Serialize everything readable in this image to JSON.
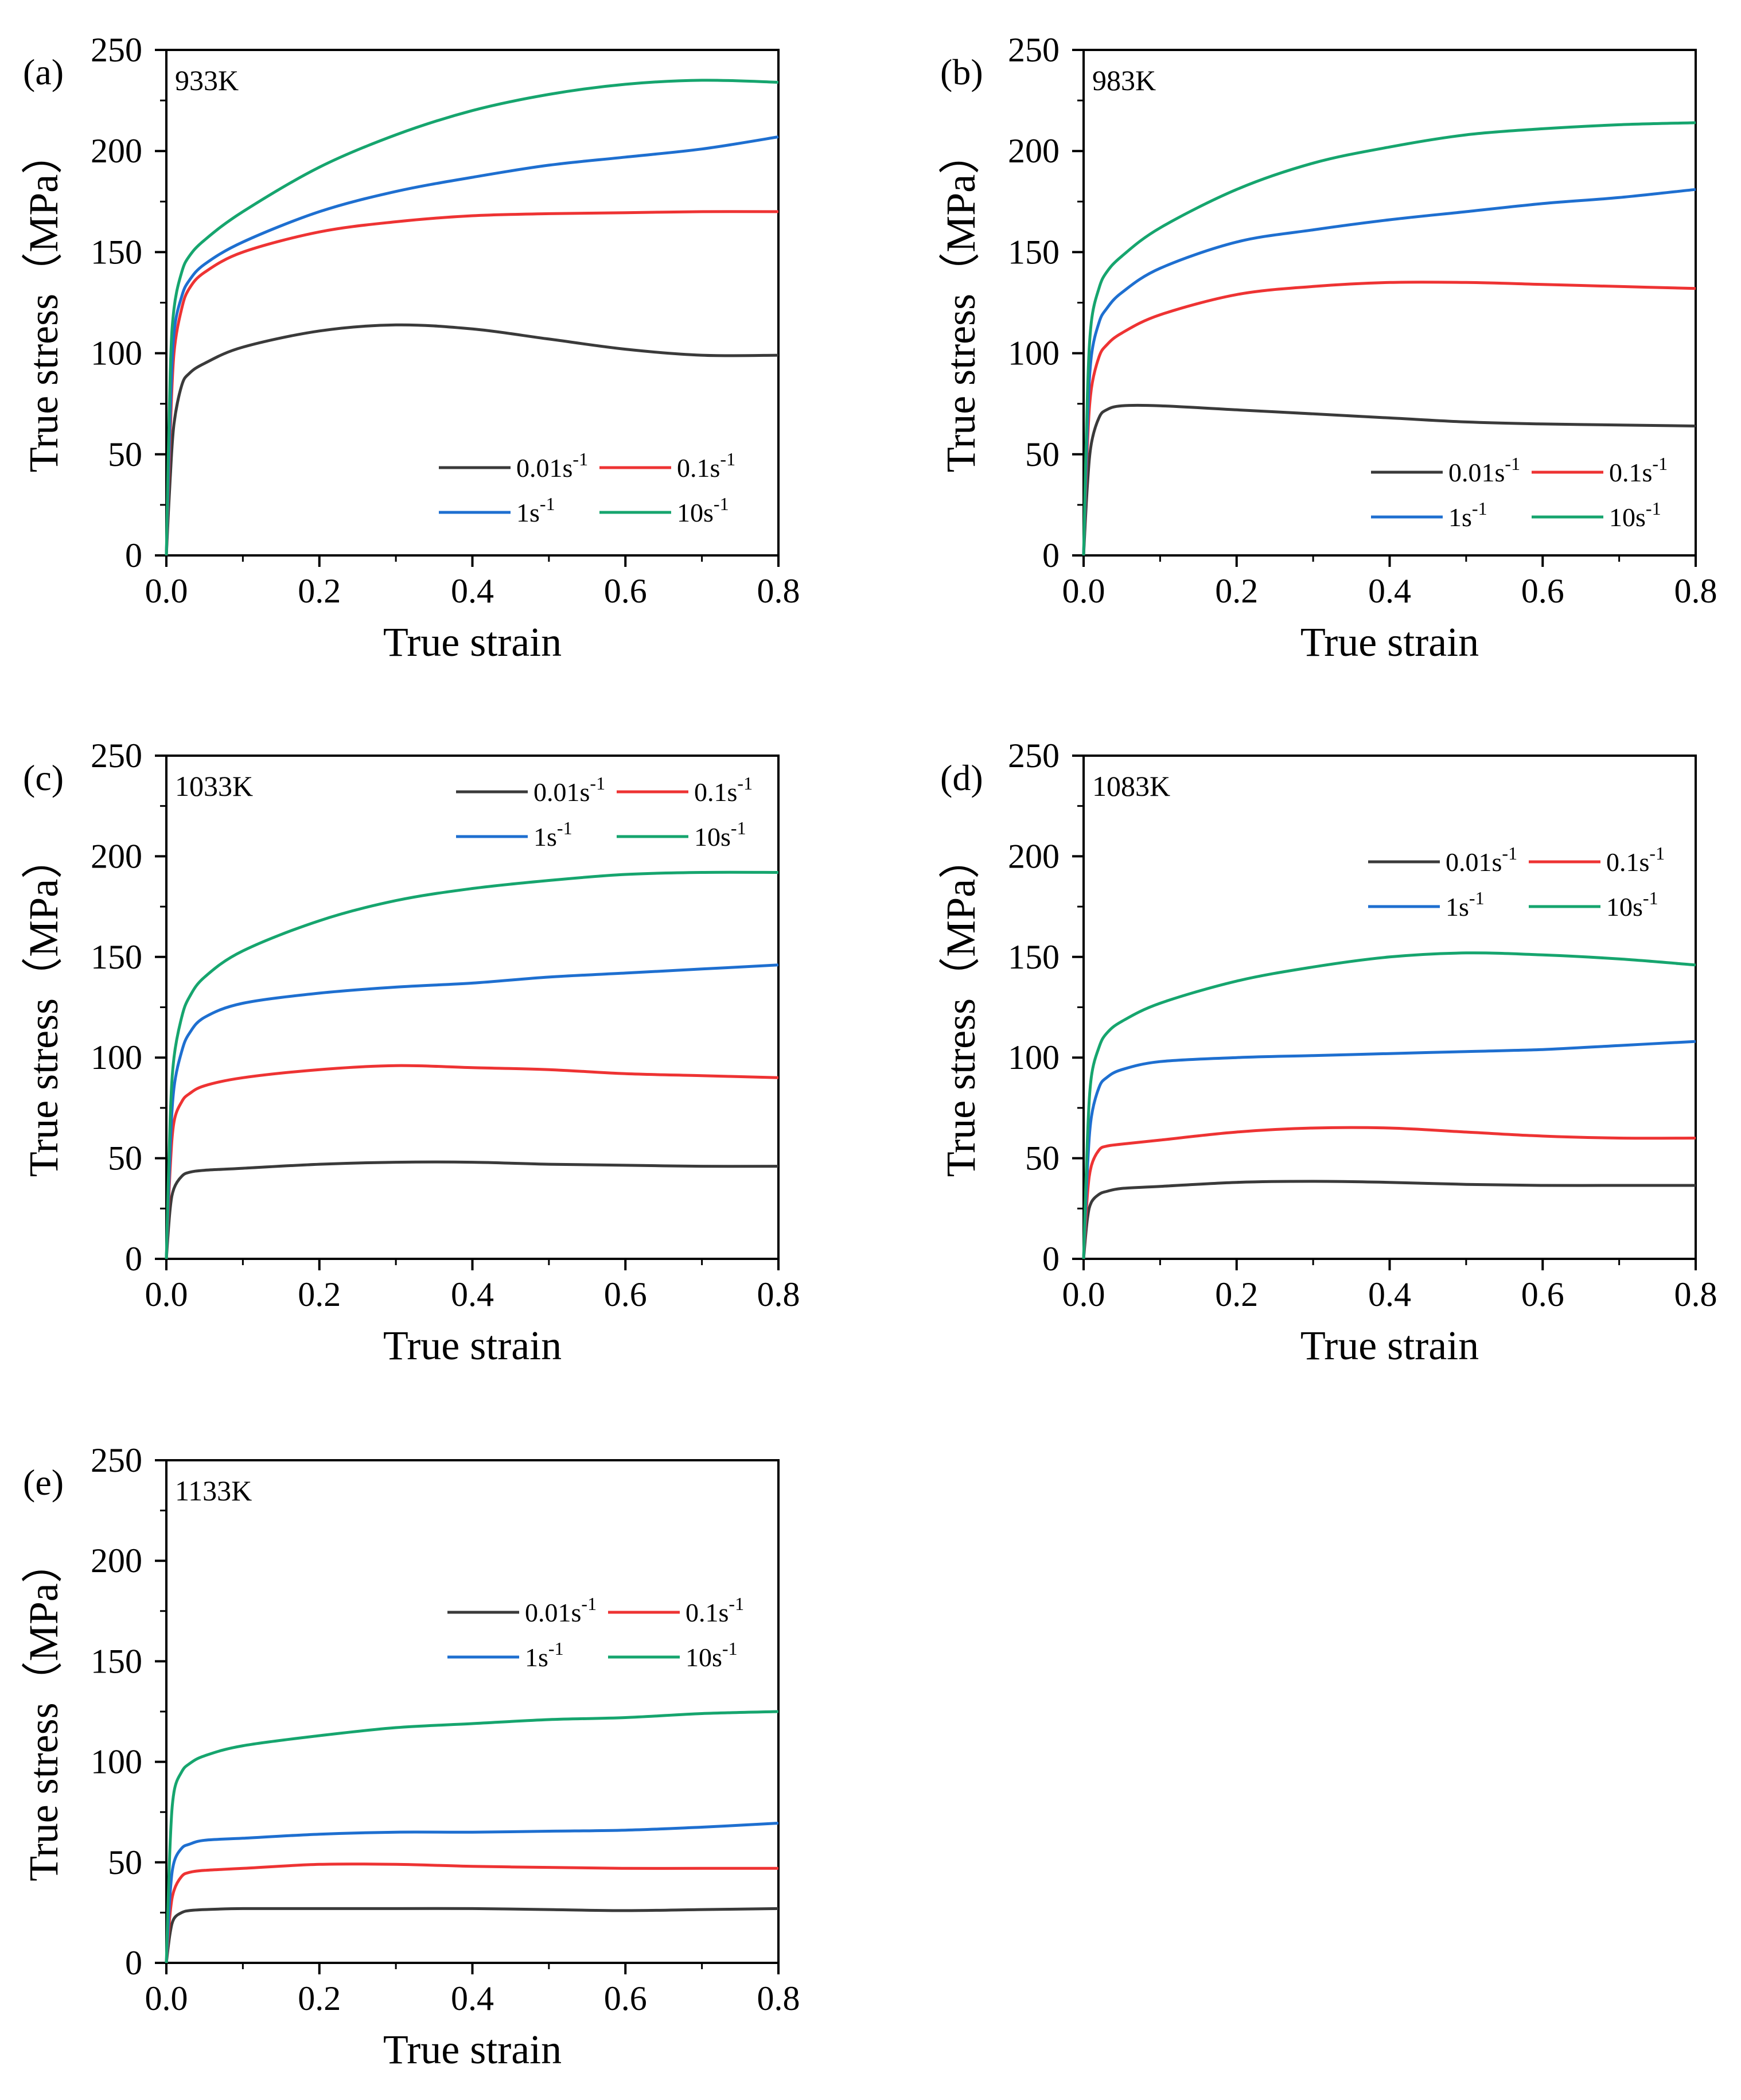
{
  "figure": {
    "x_axis_title": "True strain",
    "y_axis_title": "True stress（MPa）",
    "colors": {
      "0.01s-1": "#3a3a3a",
      "0.1s-1": "#ee3333",
      "1s-1": "#1e6fd0",
      "10s-1": "#16a56e"
    }
  },
  "chart_data": [
    {
      "type": "line",
      "panel_label": "(a)",
      "temperature": "933K",
      "xlabel": "True strain",
      "ylabel": "True stress（MPa）",
      "xlim": [
        0,
        0.8
      ],
      "ylim": [
        0,
        250
      ],
      "xticks": [
        "0.0",
        "0.2",
        "0.4",
        "0.6",
        "0.8"
      ],
      "yticks": [
        "0",
        "50",
        "100",
        "150",
        "200",
        "250"
      ],
      "legend_position": "bottom-right",
      "series": [
        {
          "name": "0.01s-1",
          "rate": "0.01",
          "color": "#3a3a3a",
          "x": [
            0,
            0.005,
            0.01,
            0.02,
            0.03,
            0.05,
            0.1,
            0.2,
            0.3,
            0.4,
            0.5,
            0.6,
            0.7,
            0.8
          ],
          "y": [
            0,
            38,
            65,
            84,
            90,
            95,
            103,
            111,
            114,
            112,
            107,
            102,
            99,
            99
          ]
        },
        {
          "name": "0.1s-1",
          "rate": "0.1",
          "color": "#ee3333",
          "x": [
            0,
            0.005,
            0.01,
            0.02,
            0.03,
            0.05,
            0.1,
            0.2,
            0.3,
            0.4,
            0.5,
            0.6,
            0.7,
            0.8
          ],
          "y": [
            0,
            60,
            100,
            122,
            132,
            140,
            150,
            160,
            165,
            168,
            169,
            169.5,
            170,
            170
          ]
        },
        {
          "name": "1s-1",
          "rate": "1",
          "color": "#1e6fd0",
          "x": [
            0,
            0.005,
            0.01,
            0.02,
            0.03,
            0.05,
            0.1,
            0.2,
            0.3,
            0.4,
            0.5,
            0.6,
            0.7,
            0.8
          ],
          "y": [
            0,
            70,
            110,
            128,
            136,
            144,
            155,
            170,
            180,
            187,
            193,
            197,
            201,
            207
          ]
        },
        {
          "name": "10s-1",
          "rate": "10",
          "color": "#16a56e",
          "x": [
            0,
            0.005,
            0.01,
            0.02,
            0.03,
            0.05,
            0.1,
            0.2,
            0.3,
            0.4,
            0.5,
            0.6,
            0.7,
            0.8
          ],
          "y": [
            0,
            90,
            122,
            140,
            148,
            156,
            170,
            192,
            208,
            220,
            228,
            233,
            235,
            234
          ]
        }
      ]
    },
    {
      "type": "line",
      "panel_label": "(b)",
      "temperature": "983K",
      "xlabel": "True strain",
      "ylabel": "True stress（MPa）",
      "xlim": [
        0,
        0.8
      ],
      "ylim": [
        0,
        250
      ],
      "xticks": [
        "0.0",
        "0.2",
        "0.4",
        "0.6",
        "0.8"
      ],
      "yticks": [
        "0",
        "50",
        "100",
        "150",
        "200",
        "250"
      ],
      "legend_position": "bottom-right",
      "series": [
        {
          "name": "0.01s-1",
          "rate": "0.01",
          "color": "#3a3a3a",
          "x": [
            0,
            0.005,
            0.01,
            0.02,
            0.03,
            0.05,
            0.1,
            0.2,
            0.3,
            0.4,
            0.5,
            0.6,
            0.7,
            0.8
          ],
          "y": [
            0,
            35,
            55,
            68,
            72,
            74,
            74,
            72,
            70,
            68,
            66,
            65,
            64.5,
            64
          ]
        },
        {
          "name": "0.1s-1",
          "rate": "0.1",
          "color": "#ee3333",
          "x": [
            0,
            0.005,
            0.01,
            0.02,
            0.03,
            0.05,
            0.1,
            0.2,
            0.3,
            0.4,
            0.5,
            0.6,
            0.7,
            0.8
          ],
          "y": [
            0,
            55,
            82,
            98,
            104,
            110,
            119,
            129,
            133,
            135,
            135,
            134,
            133,
            132
          ]
        },
        {
          "name": "1s-1",
          "rate": "1",
          "color": "#1e6fd0",
          "x": [
            0,
            0.005,
            0.01,
            0.02,
            0.03,
            0.05,
            0.1,
            0.2,
            0.3,
            0.4,
            0.5,
            0.6,
            0.7,
            0.8
          ],
          "y": [
            0,
            65,
            98,
            115,
            122,
            130,
            142,
            155,
            161,
            166,
            170,
            174,
            177,
            181
          ]
        },
        {
          "name": "10s-1",
          "rate": "10",
          "color": "#16a56e",
          "x": [
            0,
            0.005,
            0.01,
            0.02,
            0.03,
            0.05,
            0.1,
            0.2,
            0.3,
            0.4,
            0.5,
            0.6,
            0.7,
            0.8
          ],
          "y": [
            0,
            80,
            115,
            132,
            140,
            148,
            162,
            181,
            194,
            202,
            208,
            211,
            213,
            214
          ]
        }
      ]
    },
    {
      "type": "line",
      "panel_label": "(c)",
      "temperature": "1033K",
      "xlabel": "True strain",
      "ylabel": "True stress（MPa）",
      "xlim": [
        0,
        0.8
      ],
      "ylim": [
        0,
        250
      ],
      "xticks": [
        "0.0",
        "0.2",
        "0.4",
        "0.6",
        "0.8"
      ],
      "yticks": [
        "0",
        "50",
        "100",
        "150",
        "200",
        "250"
      ],
      "legend_position": "top-right",
      "series": [
        {
          "name": "0.01s-1",
          "rate": "0.01",
          "color": "#3a3a3a",
          "x": [
            0,
            0.005,
            0.01,
            0.02,
            0.03,
            0.05,
            0.1,
            0.2,
            0.3,
            0.4,
            0.5,
            0.6,
            0.7,
            0.8
          ],
          "y": [
            0,
            25,
            35,
            41,
            43,
            44,
            45,
            47,
            48,
            48,
            47,
            46.5,
            46,
            46
          ]
        },
        {
          "name": "0.1s-1",
          "rate": "0.1",
          "color": "#ee3333",
          "x": [
            0,
            0.005,
            0.01,
            0.02,
            0.03,
            0.05,
            0.1,
            0.2,
            0.3,
            0.4,
            0.5,
            0.6,
            0.7,
            0.8
          ],
          "y": [
            0,
            45,
            68,
            78,
            82,
            86,
            90,
            94,
            96,
            95,
            94,
            92,
            91,
            90
          ]
        },
        {
          "name": "1s-1",
          "rate": "1",
          "color": "#1e6fd0",
          "x": [
            0,
            0.005,
            0.01,
            0.02,
            0.03,
            0.05,
            0.1,
            0.2,
            0.3,
            0.4,
            0.5,
            0.6,
            0.7,
            0.8
          ],
          "y": [
            0,
            55,
            85,
            103,
            112,
            120,
            127,
            132,
            135,
            137,
            140,
            142,
            144,
            146
          ]
        },
        {
          "name": "10s-1",
          "rate": "10",
          "color": "#16a56e",
          "x": [
            0,
            0.005,
            0.01,
            0.02,
            0.03,
            0.05,
            0.1,
            0.2,
            0.3,
            0.4,
            0.5,
            0.6,
            0.7,
            0.8
          ],
          "y": [
            0,
            70,
            100,
            120,
            130,
            140,
            153,
            168,
            178,
            184,
            188,
            191,
            192,
            192
          ]
        }
      ]
    },
    {
      "type": "line",
      "panel_label": "(d)",
      "temperature": "1083K",
      "xlabel": "True strain",
      "ylabel": "True stress（MPa）",
      "xlim": [
        0,
        0.8
      ],
      "ylim": [
        0,
        250
      ],
      "xticks": [
        "0.0",
        "0.2",
        "0.4",
        "0.6",
        "0.8"
      ],
      "yticks": [
        "0",
        "50",
        "100",
        "150",
        "200",
        "250"
      ],
      "legend_position": "upper-right",
      "series": [
        {
          "name": "0.01s-1",
          "rate": "0.01",
          "color": "#3a3a3a",
          "x": [
            0,
            0.005,
            0.01,
            0.02,
            0.03,
            0.05,
            0.1,
            0.2,
            0.3,
            0.4,
            0.5,
            0.6,
            0.7,
            0.8
          ],
          "y": [
            0,
            20,
            28,
            32,
            33.5,
            35,
            36,
            38,
            38.5,
            38,
            37,
            36.5,
            36.5,
            36.5
          ]
        },
        {
          "name": "0.1s-1",
          "rate": "0.1",
          "color": "#ee3333",
          "x": [
            0,
            0.005,
            0.01,
            0.02,
            0.03,
            0.05,
            0.1,
            0.2,
            0.3,
            0.4,
            0.5,
            0.6,
            0.7,
            0.8
          ],
          "y": [
            0,
            32,
            46,
            54,
            56,
            57,
            59,
            63,
            65,
            65,
            63,
            61,
            60,
            60
          ]
        },
        {
          "name": "1s-1",
          "rate": "1",
          "color": "#1e6fd0",
          "x": [
            0,
            0.005,
            0.01,
            0.02,
            0.03,
            0.05,
            0.1,
            0.2,
            0.3,
            0.4,
            0.5,
            0.6,
            0.7,
            0.8
          ],
          "y": [
            0,
            45,
            70,
            85,
            90,
            94,
            98,
            100,
            101,
            102,
            103,
            104,
            106,
            108
          ]
        },
        {
          "name": "10s-1",
          "rate": "10",
          "color": "#16a56e",
          "x": [
            0,
            0.005,
            0.01,
            0.02,
            0.03,
            0.05,
            0.1,
            0.2,
            0.3,
            0.4,
            0.5,
            0.6,
            0.7,
            0.8
          ],
          "y": [
            0,
            60,
            90,
            105,
            112,
            118,
            127,
            138,
            145,
            150,
            152,
            151,
            149,
            146
          ]
        }
      ]
    },
    {
      "type": "line",
      "panel_label": "(e)",
      "temperature": "1133K",
      "xlabel": "True strain",
      "ylabel": "True stress（MPa）",
      "xlim": [
        0,
        0.8
      ],
      "ylim": [
        0,
        250
      ],
      "xticks": [
        "0.0",
        "0.2",
        "0.4",
        "0.6",
        "0.8"
      ],
      "yticks": [
        "0",
        "50",
        "100",
        "150",
        "200",
        "250"
      ],
      "legend_position": "middle-right",
      "series": [
        {
          "name": "0.01s-1",
          "rate": "0.01",
          "color": "#3a3a3a",
          "x": [
            0,
            0.005,
            0.01,
            0.02,
            0.03,
            0.05,
            0.1,
            0.2,
            0.3,
            0.4,
            0.5,
            0.6,
            0.7,
            0.8
          ],
          "y": [
            0,
            15,
            22,
            25,
            26,
            26.5,
            27,
            27,
            27,
            27,
            26.5,
            26,
            26.5,
            27
          ]
        },
        {
          "name": "0.1s-1",
          "rate": "0.1",
          "color": "#ee3333",
          "x": [
            0,
            0.005,
            0.01,
            0.02,
            0.03,
            0.05,
            0.1,
            0.2,
            0.3,
            0.4,
            0.5,
            0.6,
            0.7,
            0.8
          ],
          "y": [
            0,
            25,
            36,
            43,
            45,
            46,
            47,
            49,
            49,
            48,
            47.5,
            47,
            47,
            47
          ]
        },
        {
          "name": "1s-1",
          "rate": "1",
          "color": "#1e6fd0",
          "x": [
            0,
            0.005,
            0.01,
            0.02,
            0.03,
            0.05,
            0.1,
            0.2,
            0.3,
            0.4,
            0.5,
            0.6,
            0.7,
            0.8
          ],
          "y": [
            0,
            35,
            50,
            57,
            59,
            61,
            62,
            64,
            65,
            65,
            65.5,
            66,
            67.5,
            69.5
          ]
        },
        {
          "name": "10s-1",
          "rate": "10",
          "color": "#16a56e",
          "x": [
            0,
            0.005,
            0.01,
            0.02,
            0.03,
            0.05,
            0.1,
            0.2,
            0.3,
            0.4,
            0.5,
            0.6,
            0.7,
            0.8
          ],
          "y": [
            0,
            60,
            85,
            95,
            99,
            103,
            108,
            113,
            117,
            119,
            121,
            122,
            124,
            125
          ]
        }
      ]
    }
  ]
}
